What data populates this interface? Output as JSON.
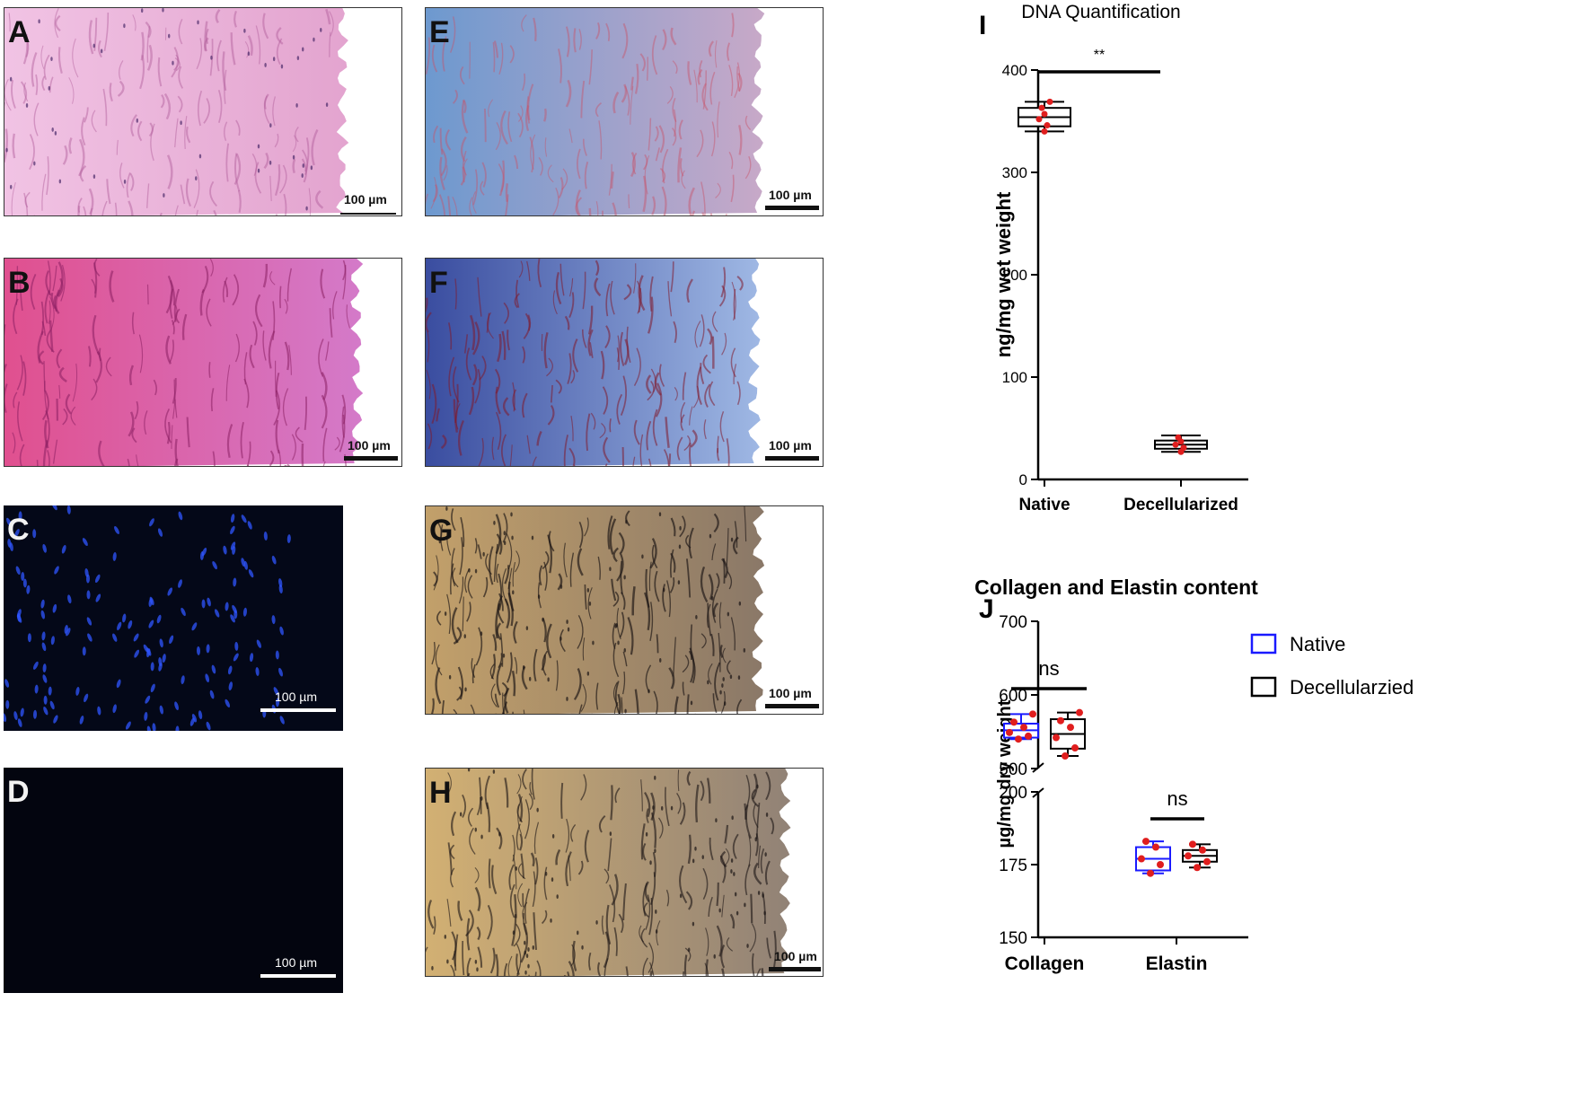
{
  "panels": [
    {
      "label": "A",
      "scale": "100 µm",
      "base": "#ecb8d9",
      "stain": "he"
    },
    {
      "label": "B",
      "scale": "100 µm",
      "base": "#d864b8",
      "stain": "pas"
    },
    {
      "label": "C",
      "scale": "100 µm",
      "base": "#060a20",
      "stain": "dapi"
    },
    {
      "label": "D",
      "scale": "100 µm",
      "base": "#050714",
      "stain": "dapi-neg"
    },
    {
      "label": "E",
      "scale": "100 µm",
      "base": "#a9bedd",
      "stain": "masson"
    },
    {
      "label": "F",
      "scale": "100 µm",
      "base": "#8aa6d8",
      "stain": "masson2"
    },
    {
      "label": "G",
      "scale": "100 µm",
      "base": "#9c8a74",
      "stain": "vvg"
    },
    {
      "label": "H",
      "scale": "100 µm",
      "base": "#9c8a74",
      "stain": "vvg2"
    }
  ],
  "figure_labels": {
    "I": "I",
    "J": "J"
  },
  "chart_data": [
    {
      "type": "box",
      "title": "DNA Quantification",
      "ylabel": "ng/mg wet weight",
      "xlabel": "",
      "ylim": [
        0,
        400
      ],
      "yticks": [
        0,
        100,
        200,
        300,
        400
      ],
      "categories": [
        "Native",
        "Decellularized"
      ],
      "series": [
        {
          "category": "Native",
          "color": "#000000",
          "min": 340,
          "q1": 345,
          "median": 354,
          "q3": 363,
          "max": 369,
          "points": [
            340,
            346,
            352,
            357,
            363,
            369
          ]
        },
        {
          "category": "Decellularized",
          "color": "#000000",
          "min": 27,
          "q1": 30,
          "median": 34,
          "q3": 38,
          "max": 43,
          "points": [
            27,
            31,
            34,
            37,
            41
          ]
        }
      ],
      "point_color": "#e01e1e",
      "significance": [
        {
          "between": [
            "Native",
            "Decellularized"
          ],
          "label": "**"
        }
      ]
    },
    {
      "type": "box",
      "title": "Collagen and Elastin content",
      "ylabel": "µg/mg dry weight",
      "xlabel": "",
      "broken_axis": true,
      "ylim_upper": [
        500,
        700
      ],
      "yticks_upper": [
        500,
        600,
        700
      ],
      "ylim_lower": [
        150,
        200
      ],
      "yticks_lower": [
        150,
        175,
        200
      ],
      "categories": [
        "Collagen",
        "Elastin"
      ],
      "series": [
        {
          "name": "Native",
          "color": "#1a1aff",
          "boxes": [
            {
              "category": "Collagen",
              "min": 540,
              "q1": 542,
              "median": 552,
              "q3": 561,
              "max": 574,
              "points": [
                540,
                544,
                549,
                556,
                563,
                574
              ]
            },
            {
              "category": "Elastin",
              "min": 172,
              "q1": 173,
              "median": 177,
              "q3": 181,
              "max": 183,
              "points": [
                172,
                175,
                177,
                181,
                183
              ]
            }
          ]
        },
        {
          "name": "Decellularzied",
          "color": "#000000",
          "boxes": [
            {
              "category": "Collagen",
              "min": 517,
              "q1": 527,
              "median": 547,
              "q3": 567,
              "max": 576,
              "points": [
                517,
                528,
                542,
                556,
                565,
                576
              ]
            },
            {
              "category": "Elastin",
              "min": 174,
              "q1": 176,
              "median": 178,
              "q3": 180,
              "max": 182,
              "points": [
                174,
                176,
                178,
                180,
                182
              ]
            }
          ]
        }
      ],
      "point_color": "#e01e1e",
      "legend": {
        "position": "right",
        "items": [
          "Native",
          "Decellularzied"
        ]
      },
      "significance": [
        {
          "category": "Collagen",
          "label": "ns"
        },
        {
          "category": "Elastin",
          "label": "ns"
        }
      ]
    }
  ]
}
